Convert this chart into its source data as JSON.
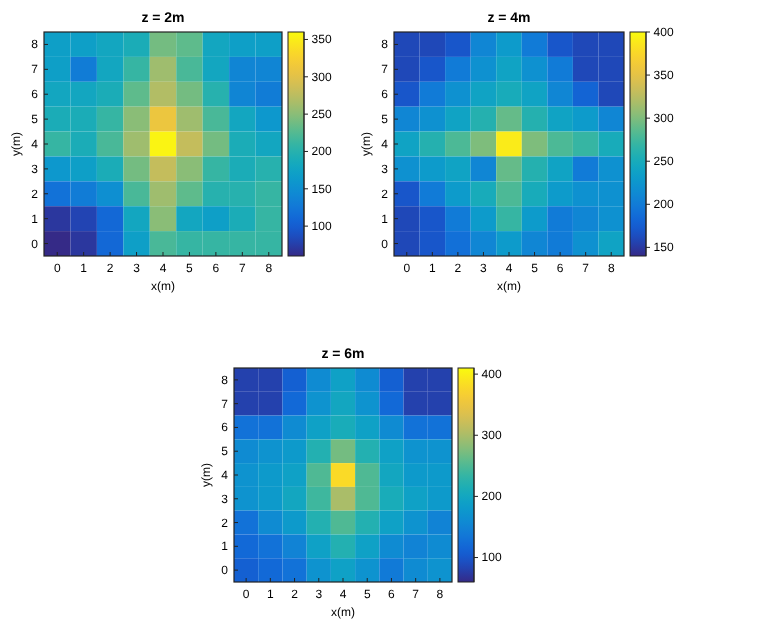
{
  "chart_data": [
    {
      "type": "heatmap",
      "title": "z = 2m",
      "xlabel": "x(m)",
      "ylabel": "y(m)",
      "categories": [
        "0",
        "1",
        "2",
        "3",
        "4",
        "5",
        "6",
        "7",
        "8"
      ],
      "y_categories": [
        "8",
        "7",
        "6",
        "5",
        "4",
        "3",
        "2",
        "1",
        "0"
      ],
      "clim": [
        60,
        360
      ],
      "cticks": [
        100,
        150,
        200,
        250,
        300,
        350
      ],
      "cells": [
        [
          170,
          170,
          180,
          190,
          240,
          230,
          180,
          170,
          170
        ],
        [
          170,
          130,
          180,
          210,
          260,
          220,
          180,
          140,
          140
        ],
        [
          180,
          180,
          190,
          230,
          270,
          240,
          200,
          140,
          130
        ],
        [
          190,
          190,
          210,
          250,
          310,
          260,
          220,
          180,
          160
        ],
        [
          210,
          190,
          220,
          260,
          355,
          280,
          240,
          190,
          180
        ],
        [
          160,
          170,
          190,
          240,
          280,
          250,
          210,
          190,
          200
        ],
        [
          120,
          130,
          150,
          220,
          260,
          230,
          200,
          200,
          210
        ],
        [
          70,
          80,
          110,
          180,
          250,
          180,
          170,
          190,
          210
        ],
        [
          60,
          70,
          110,
          170,
          220,
          210,
          210,
          210,
          210
        ]
      ]
    },
    {
      "type": "heatmap",
      "title": "z = 4m",
      "xlabel": "x(m)",
      "ylabel": "y(m)",
      "categories": [
        "0",
        "1",
        "2",
        "3",
        "4",
        "5",
        "6",
        "7",
        "8"
      ],
      "y_categories": [
        "8",
        "7",
        "6",
        "5",
        "4",
        "3",
        "2",
        "1",
        "0"
      ],
      "clim": [
        140,
        400
      ],
      "cticks": [
        150,
        200,
        250,
        300,
        350,
        400
      ],
      "cells": [
        [
          160,
          160,
          170,
          210,
          230,
          200,
          170,
          160,
          160
        ],
        [
          160,
          170,
          200,
          220,
          240,
          220,
          200,
          160,
          160
        ],
        [
          170,
          200,
          220,
          240,
          250,
          240,
          210,
          180,
          160
        ],
        [
          210,
          220,
          240,
          260,
          290,
          260,
          240,
          230,
          210
        ],
        [
          240,
          260,
          280,
          300,
          390,
          300,
          280,
          270,
          250
        ],
        [
          220,
          230,
          240,
          210,
          290,
          260,
          240,
          200,
          220
        ],
        [
          170,
          200,
          230,
          250,
          280,
          250,
          230,
          220,
          220
        ],
        [
          160,
          170,
          200,
          230,
          270,
          230,
          200,
          210,
          220
        ],
        [
          160,
          170,
          190,
          210,
          230,
          210,
          200,
          220,
          240
        ]
      ]
    },
    {
      "type": "heatmap",
      "title": "z = 6m",
      "xlabel": "x(m)",
      "ylabel": "y(m)",
      "categories": [
        "0",
        "1",
        "2",
        "3",
        "4",
        "5",
        "6",
        "7",
        "8"
      ],
      "y_categories": [
        "8",
        "7",
        "6",
        "5",
        "4",
        "3",
        "2",
        "1",
        "0"
      ],
      "clim": [
        60,
        410
      ],
      "cticks": [
        100,
        200,
        300,
        400
      ],
      "cells": [
        [
          80,
          80,
          110,
          160,
          190,
          160,
          110,
          80,
          80
        ],
        [
          80,
          80,
          120,
          170,
          200,
          170,
          120,
          80,
          80
        ],
        [
          130,
          130,
          160,
          190,
          210,
          190,
          160,
          130,
          130
        ],
        [
          160,
          170,
          180,
          220,
          270,
          220,
          190,
          170,
          170
        ],
        [
          170,
          180,
          190,
          250,
          380,
          250,
          200,
          180,
          180
        ],
        [
          170,
          180,
          200,
          240,
          300,
          250,
          210,
          190,
          180
        ],
        [
          130,
          160,
          180,
          220,
          250,
          220,
          190,
          170,
          150
        ],
        [
          120,
          130,
          150,
          190,
          220,
          190,
          160,
          150,
          160
        ],
        [
          110,
          120,
          130,
          170,
          190,
          170,
          140,
          160,
          170
        ]
      ]
    }
  ]
}
